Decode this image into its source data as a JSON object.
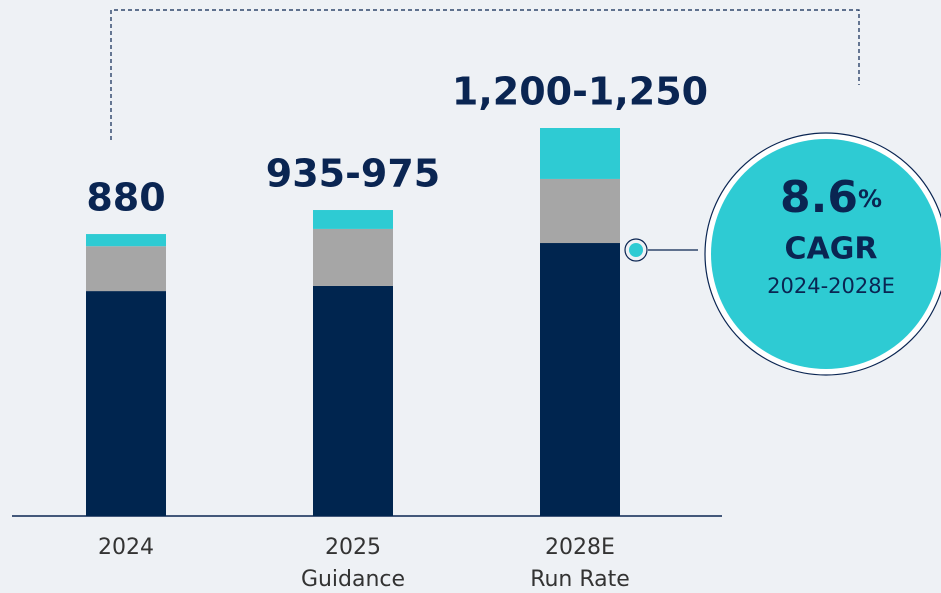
{
  "chart_data": {
    "type": "stacked_bar",
    "categories": [
      [
        "2024"
      ],
      [
        "2025",
        "Guidance"
      ],
      [
        "2028E",
        "Run Rate"
      ]
    ],
    "series": [
      {
        "color": "#00254f",
        "values": [
          702,
          718,
          852
        ]
      },
      {
        "color": "#a6a6a6",
        "values": [
          140,
          178,
          200
        ]
      },
      {
        "color": "#2ecbd3",
        "values": [
          38,
          59,
          159
        ]
      }
    ],
    "total_labels": [
      "880",
      "935-975",
      "1,200-1,250"
    ],
    "annotation": {
      "value": 8.6,
      "unit": "%",
      "label": "CAGR",
      "period": "2024-2028E"
    }
  }
}
